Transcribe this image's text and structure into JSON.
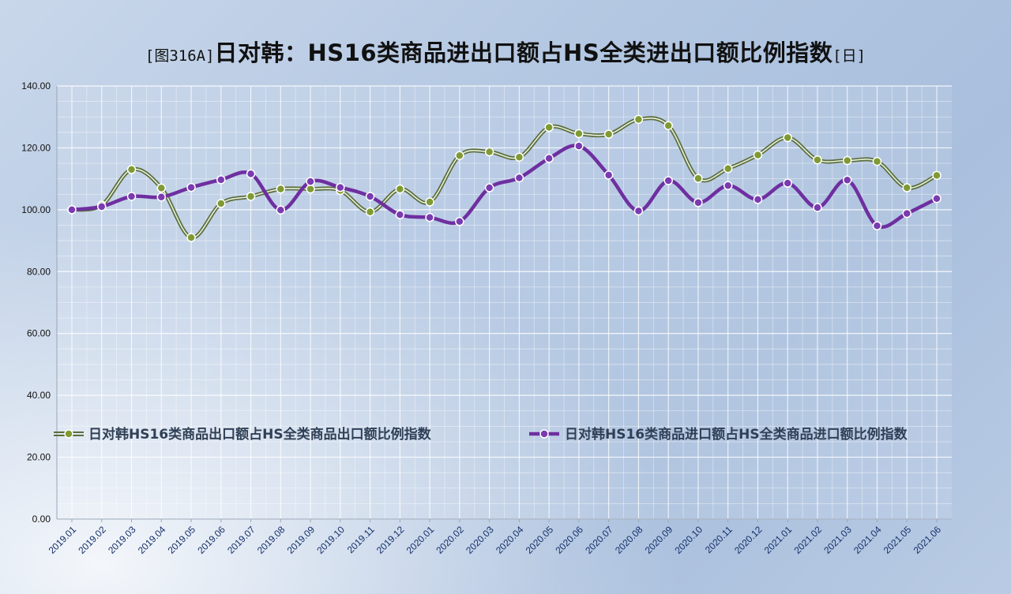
{
  "title": {
    "prefix": "[图316A]",
    "main": "日对韩：HS16类商品进出口额占HS全类进出口额比例指数",
    "suffix": "[日]"
  },
  "colors": {
    "export_line": "#5a6e3a",
    "export_marker": "#7f9a34",
    "import_line": "#6e2fa0",
    "import_marker": "#7a3bb0"
  },
  "chart_data": {
    "type": "line",
    "title": "[图316A]日对韩：HS16类商品进出口额占HS全类进出口额比例指数[日]",
    "xlabel": "",
    "ylabel": "",
    "ylim": [
      0,
      140
    ],
    "yticks": [
      "0.00",
      "20.00",
      "40.00",
      "60.00",
      "80.00",
      "100.00",
      "120.00",
      "140.00"
    ],
    "grid": true,
    "legend_position": "center",
    "categories": [
      "2019.01",
      "2019.02",
      "2019.03",
      "2019.04",
      "2019.05",
      "2019.06",
      "2019.07",
      "2019.08",
      "2019.09",
      "2019.10",
      "2019.11",
      "2019.12",
      "2020.01",
      "2020.02",
      "2020.03",
      "2020.04",
      "2020.05",
      "2020.06",
      "2020.07",
      "2020.08",
      "2020.09",
      "2020.10",
      "2020.11",
      "2020.12",
      "2021.01",
      "2021.02",
      "2021.03",
      "2021.04",
      "2021.05",
      "2021.06"
    ],
    "series": [
      {
        "name": "日对韩HS16类商品出口额占HS全类商品出口额比例指数",
        "values": [
          100.0,
          101.5,
          113.0,
          107.0,
          91.0,
          102.0,
          104.3,
          106.7,
          106.7,
          106.2,
          99.3,
          106.7,
          102.5,
          117.5,
          118.7,
          117.0,
          126.6,
          124.6,
          124.4,
          129.2,
          127.2,
          110.1,
          113.3,
          117.7,
          123.3,
          116.1,
          115.9,
          115.6,
          107.1,
          111.1
        ]
      },
      {
        "name": "日对韩HS16类商品进口额占HS全类商品进口额比例指数",
        "values": [
          100.0,
          101.0,
          104.3,
          104.1,
          107.2,
          109.7,
          111.6,
          99.9,
          109.1,
          107.2,
          104.3,
          98.4,
          97.5,
          96.2,
          107.1,
          110.3,
          116.6,
          120.6,
          111.2,
          99.6,
          109.4,
          102.3,
          107.8,
          103.3,
          108.6,
          100.7,
          109.6,
          94.8,
          98.8,
          103.6
        ]
      }
    ]
  }
}
